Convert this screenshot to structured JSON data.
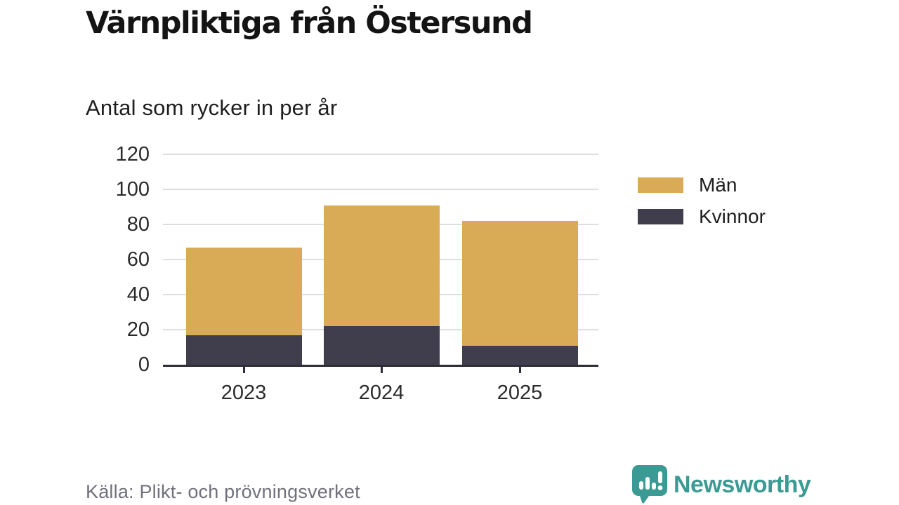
{
  "chart_data": {
    "type": "bar",
    "stacked": true,
    "title": "Värnpliktiga från Östersund",
    "subtitle": "Antal som rycker in per år",
    "source": "Källa: Plikt- och prövningsverket",
    "categories": [
      "2023",
      "2024",
      "2025"
    ],
    "series": [
      {
        "name": "Män",
        "color": "#d9ab57",
        "values": [
          50,
          69,
          71
        ]
      },
      {
        "name": "Kvinnor",
        "color": "#403e4d",
        "values": [
          17,
          22,
          11
        ]
      }
    ],
    "totals": [
      67,
      91,
      82
    ],
    "stack_order_bottom_to_top": [
      "Kvinnor",
      "Män"
    ],
    "xlabel": "",
    "ylabel": "",
    "ylim": [
      0,
      120
    ],
    "yticks": [
      0,
      20,
      40,
      60,
      80,
      100,
      120
    ],
    "grid": true,
    "legend_position": "right-of-plot"
  },
  "legend": {
    "items": [
      {
        "label": "Män",
        "color": "#d9ab57"
      },
      {
        "label": "Kvinnor",
        "color": "#403e4d"
      }
    ]
  },
  "footer": {
    "source": "Källa: Plikt- och prövningsverket",
    "brand": "Newsworthy",
    "brand_color": "#3b9b94"
  },
  "style": {
    "gridline_color": "#dedede",
    "axis_color": "#2e2d37",
    "label_color": "#2b2b2b",
    "source_color": "#71717d"
  }
}
